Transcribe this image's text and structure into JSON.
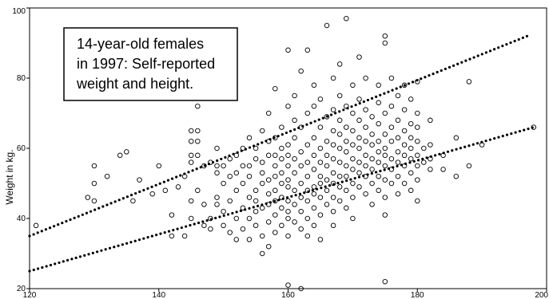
{
  "chart_data": {
    "type": "scatter",
    "title": "",
    "xlabel": "",
    "ylabel": "Weight in kg.",
    "xlim": [
      120,
      200
    ],
    "ylim": [
      20,
      100
    ],
    "x_ticks": [
      "120",
      "140",
      "160",
      "180",
      "200"
    ],
    "y_ticks": [
      "20",
      "40",
      "60",
      "80",
      "100"
    ],
    "grid": false,
    "legend": "none",
    "annotation": {
      "lines": [
        "14-year-old females",
        "in 1997: Self-reported",
        "weight and height."
      ]
    },
    "reference_lines": [
      {
        "style": "dotted",
        "x": [
          120,
          197
        ],
        "y": [
          35,
          92
        ]
      },
      {
        "style": "dotted",
        "x": [
          120,
          198
        ],
        "y": [
          25,
          66
        ]
      }
    ],
    "points": [
      [
        121,
        38
      ],
      [
        129,
        46
      ],
      [
        130,
        45
      ],
      [
        130,
        50
      ],
      [
        130,
        55
      ],
      [
        132,
        52
      ],
      [
        134,
        58
      ],
      [
        135,
        59
      ],
      [
        136,
        45
      ],
      [
        137,
        51
      ],
      [
        139,
        47
      ],
      [
        140,
        55
      ],
      [
        141,
        48
      ],
      [
        142,
        41
      ],
      [
        142,
        35
      ],
      [
        143,
        49
      ],
      [
        144,
        35
      ],
      [
        144,
        52
      ],
      [
        145,
        56
      ],
      [
        145,
        58
      ],
      [
        145,
        62
      ],
      [
        145,
        65
      ],
      [
        145,
        45
      ],
      [
        145,
        40
      ],
      [
        146,
        65
      ],
      [
        146,
        62
      ],
      [
        146,
        72
      ],
      [
        146,
        58
      ],
      [
        146,
        48
      ],
      [
        147,
        38
      ],
      [
        147,
        44
      ],
      [
        147,
        55
      ],
      [
        148,
        40
      ],
      [
        148,
        37
      ],
      [
        148,
        56
      ],
      [
        149,
        55
      ],
      [
        149,
        60
      ],
      [
        149,
        53
      ],
      [
        149,
        46
      ],
      [
        149,
        44
      ],
      [
        150,
        38
      ],
      [
        150,
        42
      ],
      [
        150,
        50
      ],
      [
        150,
        55
      ],
      [
        151,
        36
      ],
      [
        151,
        45
      ],
      [
        151,
        52
      ],
      [
        151,
        57
      ],
      [
        152,
        40
      ],
      [
        152,
        48
      ],
      [
        152,
        53
      ],
      [
        152,
        58
      ],
      [
        152,
        34
      ],
      [
        153,
        55
      ],
      [
        153,
        37
      ],
      [
        153,
        43
      ],
      [
        153,
        60
      ],
      [
        153,
        50
      ],
      [
        154,
        46
      ],
      [
        154,
        55
      ],
      [
        154,
        40
      ],
      [
        154,
        63
      ],
      [
        154,
        52
      ],
      [
        154,
        34
      ],
      [
        155,
        42
      ],
      [
        155,
        48
      ],
      [
        155,
        57
      ],
      [
        155,
        60
      ],
      [
        155,
        45
      ],
      [
        155,
        38
      ],
      [
        156,
        50
      ],
      [
        156,
        56
      ],
      [
        156,
        43
      ],
      [
        156,
        53
      ],
      [
        156,
        35
      ],
      [
        156,
        30
      ],
      [
        156,
        65
      ],
      [
        157,
        44
      ],
      [
        157,
        58
      ],
      [
        157,
        47
      ],
      [
        157,
        62
      ],
      [
        157,
        51
      ],
      [
        157,
        39
      ],
      [
        157,
        70
      ],
      [
        157,
        32
      ],
      [
        158,
        45
      ],
      [
        158,
        52
      ],
      [
        158,
        58
      ],
      [
        158,
        48
      ],
      [
        158,
        63
      ],
      [
        158,
        41
      ],
      [
        158,
        36
      ],
      [
        158,
        55
      ],
      [
        158,
        77
      ],
      [
        159,
        50
      ],
      [
        159,
        43
      ],
      [
        159,
        57
      ],
      [
        159,
        46
      ],
      [
        159,
        66
      ],
      [
        159,
        38
      ],
      [
        159,
        53
      ],
      [
        159,
        60
      ],
      [
        160,
        45
      ],
      [
        160,
        49
      ],
      [
        160,
        55
      ],
      [
        160,
        51
      ],
      [
        160,
        61
      ],
      [
        160,
        72
      ],
      [
        160,
        40
      ],
      [
        160,
        42
      ],
      [
        160,
        88
      ],
      [
        160,
        58
      ],
      [
        160,
        35
      ],
      [
        160,
        21
      ],
      [
        161,
        48
      ],
      [
        161,
        53
      ],
      [
        161,
        57
      ],
      [
        161,
        44
      ],
      [
        161,
        63
      ],
      [
        161,
        68
      ],
      [
        161,
        39
      ],
      [
        161,
        75
      ],
      [
        162,
        50
      ],
      [
        162,
        46
      ],
      [
        162,
        55
      ],
      [
        162,
        59
      ],
      [
        162,
        42
      ],
      [
        162,
        66
      ],
      [
        162,
        37
      ],
      [
        162,
        20
      ],
      [
        162,
        82
      ],
      [
        163,
        52
      ],
      [
        163,
        48
      ],
      [
        163,
        56
      ],
      [
        163,
        45
      ],
      [
        163,
        61
      ],
      [
        163,
        70
      ],
      [
        163,
        40
      ],
      [
        163,
        88
      ],
      [
        163,
        35
      ],
      [
        164,
        54
      ],
      [
        164,
        49
      ],
      [
        164,
        58
      ],
      [
        164,
        47
      ],
      [
        164,
        63
      ],
      [
        164,
        72
      ],
      [
        164,
        43
      ],
      [
        164,
        38
      ],
      [
        164,
        78
      ],
      [
        165,
        52
      ],
      [
        165,
        56
      ],
      [
        165,
        50
      ],
      [
        165,
        60
      ],
      [
        165,
        46
      ],
      [
        165,
        66
      ],
      [
        165,
        41
      ],
      [
        165,
        74
      ],
      [
        165,
        34
      ],
      [
        166,
        55
      ],
      [
        166,
        51
      ],
      [
        166,
        58
      ],
      [
        166,
        48
      ],
      [
        166,
        62
      ],
      [
        166,
        69
      ],
      [
        166,
        44
      ],
      [
        166,
        95
      ],
      [
        167,
        53
      ],
      [
        167,
        57
      ],
      [
        167,
        50
      ],
      [
        167,
        61
      ],
      [
        167,
        46
      ],
      [
        167,
        65
      ],
      [
        167,
        71
      ],
      [
        167,
        42
      ],
      [
        167,
        80
      ],
      [
        167,
        38
      ],
      [
        168,
        56
      ],
      [
        168,
        52
      ],
      [
        168,
        60
      ],
      [
        168,
        49
      ],
      [
        168,
        64
      ],
      [
        168,
        68
      ],
      [
        168,
        45
      ],
      [
        168,
        75
      ],
      [
        168,
        84
      ],
      [
        169,
        55
      ],
      [
        169,
        59
      ],
      [
        169,
        52
      ],
      [
        169,
        62
      ],
      [
        169,
        48
      ],
      [
        169,
        66
      ],
      [
        169,
        72
      ],
      [
        169,
        43
      ],
      [
        169,
        97
      ],
      [
        170,
        57
      ],
      [
        170,
        54
      ],
      [
        170,
        61
      ],
      [
        170,
        50
      ],
      [
        170,
        65
      ],
      [
        170,
        70
      ],
      [
        170,
        46
      ],
      [
        170,
        78
      ],
      [
        170,
        40
      ],
      [
        171,
        56
      ],
      [
        171,
        60
      ],
      [
        171,
        53
      ],
      [
        171,
        63
      ],
      [
        171,
        49
      ],
      [
        171,
        68
      ],
      [
        171,
        74
      ],
      [
        171,
        86
      ],
      [
        172,
        58
      ],
      [
        172,
        55
      ],
      [
        172,
        62
      ],
      [
        172,
        52
      ],
      [
        172,
        66
      ],
      [
        172,
        71
      ],
      [
        172,
        47
      ],
      [
        172,
        80
      ],
      [
        173,
        57
      ],
      [
        173,
        61
      ],
      [
        173,
        54
      ],
      [
        173,
        64
      ],
      [
        173,
        50
      ],
      [
        173,
        69
      ],
      [
        173,
        44
      ],
      [
        174,
        59
      ],
      [
        174,
        56
      ],
      [
        174,
        62
      ],
      [
        174,
        52
      ],
      [
        174,
        67
      ],
      [
        174,
        73
      ],
      [
        174,
        48
      ],
      [
        174,
        78
      ],
      [
        175,
        58
      ],
      [
        175,
        60
      ],
      [
        175,
        55
      ],
      [
        175,
        64
      ],
      [
        175,
        51
      ],
      [
        175,
        70
      ],
      [
        175,
        46
      ],
      [
        175,
        90
      ],
      [
        175,
        92
      ],
      [
        175,
        41
      ],
      [
        175,
        22
      ],
      [
        176,
        57
      ],
      [
        176,
        62
      ],
      [
        176,
        54
      ],
      [
        176,
        66
      ],
      [
        176,
        50
      ],
      [
        176,
        72
      ],
      [
        176,
        80
      ],
      [
        177,
        59
      ],
      [
        177,
        56
      ],
      [
        177,
        63
      ],
      [
        177,
        52
      ],
      [
        177,
        68
      ],
      [
        177,
        47
      ],
      [
        177,
        75
      ],
      [
        178,
        58
      ],
      [
        178,
        61
      ],
      [
        178,
        55
      ],
      [
        178,
        65
      ],
      [
        178,
        50
      ],
      [
        178,
        71
      ],
      [
        178,
        78
      ],
      [
        179,
        60
      ],
      [
        179,
        57
      ],
      [
        179,
        63
      ],
      [
        179,
        53
      ],
      [
        179,
        67
      ],
      [
        179,
        48
      ],
      [
        179,
        74
      ],
      [
        180,
        58
      ],
      [
        180,
        62
      ],
      [
        180,
        55
      ],
      [
        180,
        66
      ],
      [
        180,
        51
      ],
      [
        180,
        70
      ],
      [
        180,
        79
      ],
      [
        180,
        45
      ],
      [
        181,
        60
      ],
      [
        181,
        56
      ],
      [
        182,
        57
      ],
      [
        182,
        61
      ],
      [
        182,
        54
      ],
      [
        182,
        68
      ],
      [
        184,
        54
      ],
      [
        184,
        58
      ],
      [
        186,
        52
      ],
      [
        186,
        63
      ],
      [
        188,
        79
      ],
      [
        188,
        55
      ],
      [
        190,
        61
      ],
      [
        198,
        66
      ]
    ]
  }
}
